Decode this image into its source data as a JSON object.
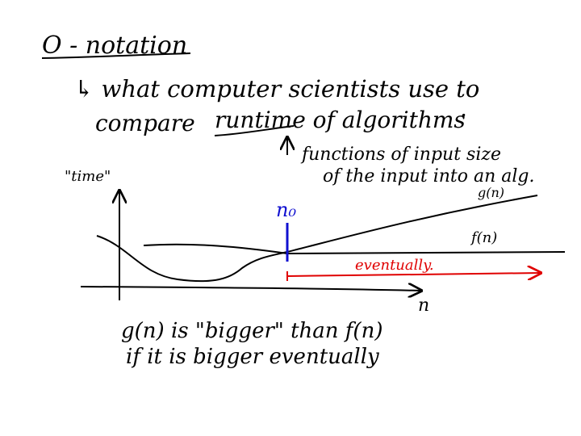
{
  "title": "O - notation",
  "line1": "↳ what computer scientists use to",
  "line2_pre": "compare",
  "line2_underlined": "runtime of algorithms",
  "line2_post": ".",
  "annot1": "functions of input size",
  "annot2": "of the input into an alg.",
  "ylabel": "\"time\"",
  "xlabel": "n",
  "curve_g_label": "g(n)",
  "curve_f_label": "f(n)",
  "marker_label": "n₀",
  "eventually_label": "eventually.",
  "caption1": "g(n)  is  \"bigger\"  than  f(n)",
  "caption2": "if  it  is  bigger  eventually",
  "colors": {
    "ink": "#000000",
    "marker": "#1010d0",
    "eventually": "#e00000"
  }
}
